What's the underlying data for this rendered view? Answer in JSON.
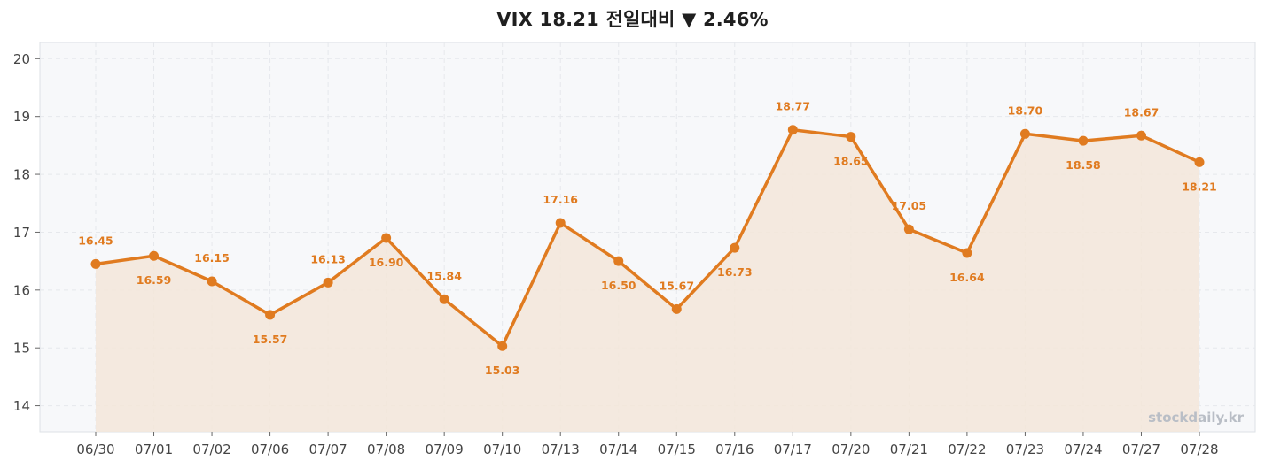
{
  "title": "VIX  18.21  전일대비 ▼ 2.46%",
  "watermark": "stockdaily.kr",
  "colors": {
    "line": "#e07b20",
    "fill": "#f3e6d9",
    "plot_bg": "#f7f8fa",
    "grid": "#e6e8ec",
    "frame": "#dde1e6"
  },
  "chart_data": {
    "type": "line",
    "categories": [
      "06/30",
      "07/01",
      "07/02",
      "07/06",
      "07/07",
      "07/08",
      "07/09",
      "07/10",
      "07/13",
      "07/14",
      "07/15",
      "07/16",
      "07/17",
      "07/20",
      "07/21",
      "07/22",
      "07/23",
      "07/24",
      "07/27",
      "07/28"
    ],
    "series": [
      {
        "values": [
          16.45,
          16.59,
          16.15,
          15.57,
          16.13,
          16.9,
          15.84,
          15.03,
          17.16,
          16.5,
          15.67,
          16.73,
          18.77,
          18.65,
          17.05,
          16.64,
          18.7,
          18.58,
          18.67,
          18.21
        ],
        "labels": [
          "16.45",
          "16.59",
          "16.15",
          "15.57",
          "16.13",
          "16.90",
          "15.84",
          "15.03",
          "17.16",
          "16.50",
          "15.67",
          "16.73",
          "18.77",
          "18.65",
          "17.05",
          "16.64",
          "18.70",
          "18.58",
          "18.67",
          "18.21"
        ],
        "label_positions": [
          "above",
          "below",
          "above",
          "below",
          "above",
          "below",
          "above",
          "below",
          "above",
          "below",
          "above",
          "below",
          "above",
          "below",
          "above",
          "below",
          "above",
          "below",
          "above",
          "below"
        ]
      }
    ],
    "ylim": [
      13.55,
      20.28
    ],
    "yticks": [
      14,
      15,
      16,
      17,
      18,
      19,
      20
    ],
    "grid": true,
    "xlabel": "",
    "ylabel": ""
  }
}
